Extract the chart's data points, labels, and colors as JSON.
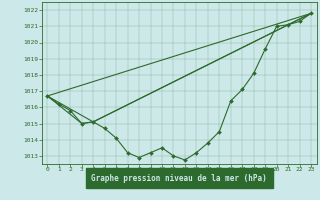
{
  "title": "Graphe pression niveau de la mer (hPa)",
  "bg_color": "#cce8e8",
  "line_color": "#2d6a2d",
  "xlabel_bg": "#2d6a2d",
  "xlabel_fg": "#cce8e8",
  "xlim": [
    -0.5,
    23.5
  ],
  "ylim": [
    1012.5,
    1022.5
  ],
  "yticks": [
    1013,
    1014,
    1015,
    1016,
    1017,
    1018,
    1019,
    1020,
    1021,
    1022
  ],
  "xticks": [
    0,
    1,
    2,
    3,
    4,
    5,
    6,
    7,
    8,
    9,
    10,
    11,
    12,
    13,
    14,
    15,
    16,
    17,
    18,
    19,
    20,
    21,
    22,
    23
  ],
  "series_main": {
    "x": [
      0,
      1,
      2,
      3,
      4,
      5,
      6,
      7,
      8,
      9,
      10,
      11,
      12,
      13,
      14,
      15,
      16,
      17,
      18,
      19,
      20,
      21,
      22,
      23
    ],
    "y": [
      1016.7,
      1016.2,
      1015.8,
      1015.0,
      1015.1,
      1014.7,
      1014.1,
      1013.2,
      1012.9,
      1013.2,
      1013.5,
      1013.0,
      1012.75,
      1013.2,
      1013.8,
      1014.5,
      1016.4,
      1017.1,
      1018.1,
      1019.6,
      1021.0,
      1021.1,
      1021.3,
      1021.8
    ]
  },
  "series_diag1": {
    "x": [
      0,
      23
    ],
    "y": [
      1016.7,
      1021.8
    ]
  },
  "series_diag2": {
    "x": [
      0,
      4,
      23
    ],
    "y": [
      1016.7,
      1015.1,
      1021.8
    ]
  },
  "series_diag3": {
    "x": [
      0,
      3,
      4,
      23
    ],
    "y": [
      1016.7,
      1015.0,
      1015.1,
      1021.8
    ]
  }
}
